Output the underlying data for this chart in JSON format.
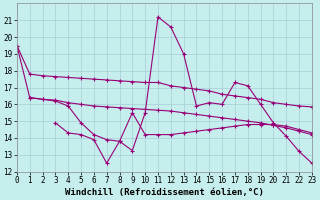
{
  "xlabel": "Windchill (Refroidissement éolien,°C)",
  "ylim": [
    12,
    22
  ],
  "xlim": [
    0,
    23
  ],
  "yticks": [
    12,
    13,
    14,
    15,
    16,
    17,
    18,
    19,
    20,
    21
  ],
  "xticks": [
    0,
    1,
    2,
    3,
    4,
    5,
    6,
    7,
    8,
    9,
    10,
    11,
    12,
    13,
    14,
    15,
    16,
    17,
    18,
    19,
    20,
    21,
    22,
    23
  ],
  "bg_color": "#c5eeed",
  "grid_color": "#a8cdd8",
  "line_color": "#990077",
  "line1_x": [
    0,
    1,
    2,
    3,
    4,
    5,
    6,
    7,
    8,
    9,
    10,
    11,
    12,
    13,
    14,
    15,
    16,
    17,
    18,
    19,
    20,
    21,
    22,
    23
  ],
  "line1_y": [
    19.5,
    17.8,
    17.7,
    17.65,
    17.6,
    17.55,
    17.5,
    17.45,
    17.4,
    17.35,
    17.3,
    17.3,
    17.1,
    17.0,
    16.9,
    16.8,
    16.6,
    16.5,
    16.4,
    16.3,
    16.1,
    16.0,
    15.9,
    15.85
  ],
  "line2_x": [
    1,
    2,
    3,
    4,
    5,
    6,
    7,
    8,
    9,
    10,
    11,
    12,
    13,
    14,
    15,
    16,
    17,
    18,
    19,
    20,
    21,
    22,
    23
  ],
  "line2_y": [
    16.4,
    16.3,
    16.25,
    16.1,
    16.0,
    15.9,
    15.85,
    15.8,
    15.75,
    15.7,
    15.65,
    15.6,
    15.5,
    15.4,
    15.3,
    15.2,
    15.1,
    15.0,
    14.9,
    14.75,
    14.6,
    14.4,
    14.2
  ],
  "line3_x": [
    0,
    1,
    2,
    3,
    4,
    5,
    6,
    7,
    8,
    9,
    10,
    11,
    12,
    13,
    14,
    15,
    16,
    17,
    18,
    19,
    20,
    21,
    22,
    23
  ],
  "line3_y": [
    19.5,
    16.4,
    16.3,
    16.2,
    15.9,
    14.9,
    14.2,
    13.9,
    13.8,
    13.25,
    15.5,
    21.2,
    20.6,
    19.0,
    15.9,
    16.1,
    16.0,
    17.3,
    17.1,
    16.0,
    14.9,
    14.1,
    13.2,
    12.5
  ],
  "line4_x": [
    3,
    4,
    5,
    6,
    7,
    8,
    9,
    10,
    11,
    12,
    13,
    14,
    15,
    16,
    17,
    18,
    19,
    20,
    21,
    22,
    23
  ],
  "line4_y": [
    14.9,
    14.3,
    14.2,
    13.9,
    12.5,
    13.8,
    15.5,
    14.2,
    14.2,
    14.2,
    14.3,
    14.4,
    14.5,
    14.6,
    14.7,
    14.8,
    14.8,
    14.8,
    14.7,
    14.5,
    14.3
  ],
  "xlabel_fontsize": 6.5,
  "tick_fontsize": 5.5
}
